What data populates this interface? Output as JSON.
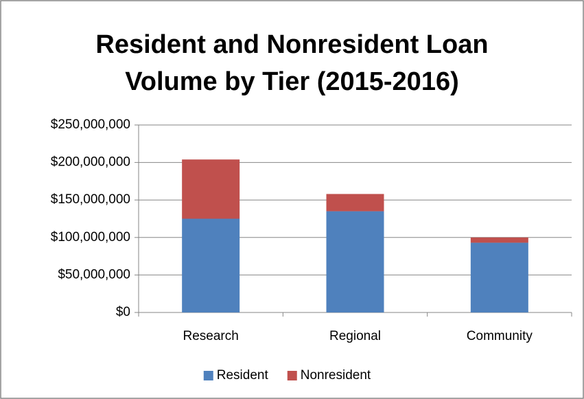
{
  "chart_data": {
    "type": "bar",
    "stacked": true,
    "title": "Resident and Nonresident Loan Volume by Tier (2015-2016)",
    "categories": [
      "Research",
      "Regional",
      "Community"
    ],
    "series": [
      {
        "name": "Resident",
        "color": "#4f81bd",
        "values": [
          125000000,
          135000000,
          93000000
        ]
      },
      {
        "name": "Nonresident",
        "color": "#c0504d",
        "values": [
          79000000,
          23000000,
          7000000
        ]
      }
    ],
    "ylim": [
      0,
      250000000
    ],
    "yticks": [
      0,
      {
        "value": 50000000,
        "label": "$50,000,000"
      },
      {
        "value": 100000000,
        "label": "$100,000,000"
      },
      {
        "value": 150000000,
        "label": "$150,000,000"
      },
      {
        "value": 200000000,
        "label": "$200,000,000"
      },
      {
        "value": 250000000,
        "label": "$250,000,000"
      }
    ],
    "zero_label": "$0",
    "grid": true,
    "legend": "bottom"
  }
}
